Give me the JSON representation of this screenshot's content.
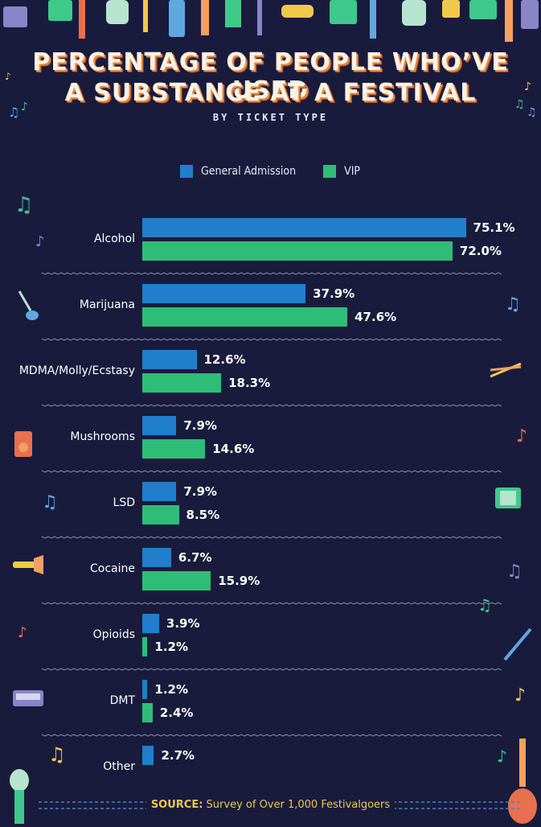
{
  "header": {
    "title_line1": "PERCENTAGE OF PEOPLE WHO’VE USED",
    "title_line2": "A SUBSTANCE AT A FESTIVAL",
    "subtitle": "BY TICKET TYPE"
  },
  "colors": {
    "background": "#191b3d",
    "general_admission": "#1f7fcc",
    "vip": "#2ebd76",
    "divider": "#8c8fb0",
    "title_shadow": "#ec8a3c",
    "source": "#f0c94a"
  },
  "chart_data": {
    "type": "bar",
    "orientation": "horizontal",
    "categories": [
      "Alcohol",
      "Marijuana",
      "MDMA/Molly/Ecstasy",
      "Mushrooms",
      "LSD",
      "Cocaine",
      "Opioids",
      "DMT",
      "Other"
    ],
    "series": [
      {
        "name": "General Admission",
        "values": [
          75.1,
          37.9,
          12.6,
          7.9,
          7.9,
          6.7,
          3.9,
          1.2,
          2.7
        ],
        "labels": [
          "75.1%",
          "37.9%",
          "12.6%",
          "7.9%",
          "7.9%",
          "6.7%",
          "3.9%",
          "1.2%",
          "2.7%"
        ]
      },
      {
        "name": "VIP",
        "values": [
          72.0,
          47.6,
          18.3,
          14.6,
          8.5,
          15.9,
          1.2,
          2.4,
          null
        ],
        "labels": [
          "72.0%",
          "47.6%",
          "18.3%",
          "14.6%",
          "8.5%",
          "15.9%",
          "1.2%",
          "2.4%",
          null
        ]
      }
    ],
    "xlim": [
      0,
      100
    ],
    "legend_position": "top-center",
    "grid": false
  },
  "source": {
    "label": "SOURCE:",
    "text": " Survey of Over 1,000 Festivalgoers"
  },
  "icons": [
    "music-note-icon",
    "guitar-icon",
    "drumsticks-icon",
    "speaker-icon",
    "accordion-icon",
    "trumpet-icon",
    "trombone-icon",
    "keyboard-icon",
    "microphone-icon"
  ]
}
